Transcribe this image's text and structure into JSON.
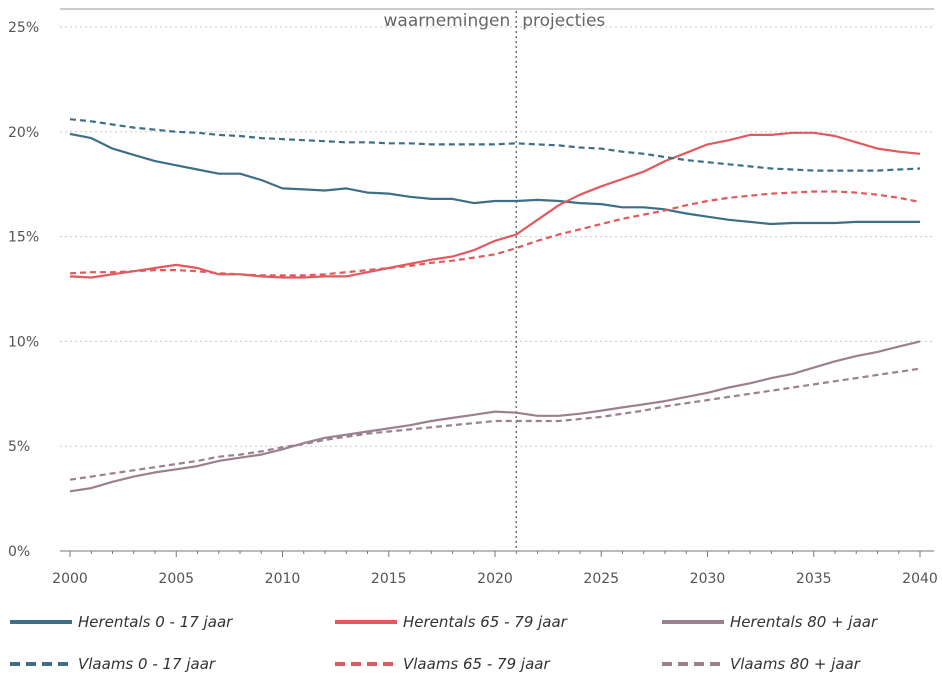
{
  "chart_data": {
    "type": "line",
    "title": "",
    "xlabel": "",
    "ylabel": "",
    "xlim": [
      2000,
      2040
    ],
    "ylim": [
      0,
      25
    ],
    "x_ticks": [
      "2000",
      "2005",
      "2010",
      "2015",
      "2020",
      "2025",
      "2030",
      "2035",
      "2040"
    ],
    "y_ticks": [
      "0%",
      "5%",
      "10%",
      "15%",
      "20%",
      "25%"
    ],
    "grid": "horizontal dotted",
    "divider_year": 2021,
    "annotation_left": "waarnemingen",
    "annotation_right": "projecties",
    "legend_position": "bottom",
    "x": [
      2000,
      2001,
      2002,
      2003,
      2004,
      2005,
      2006,
      2007,
      2008,
      2009,
      2010,
      2011,
      2012,
      2013,
      2014,
      2015,
      2016,
      2017,
      2018,
      2019,
      2020,
      2021,
      2022,
      2023,
      2024,
      2025,
      2026,
      2027,
      2028,
      2029,
      2030,
      2031,
      2032,
      2033,
      2034,
      2035,
      2036,
      2037,
      2038,
      2039,
      2040
    ],
    "series": [
      {
        "name": "Herentals 0 - 17 jaar",
        "color": "#3e6f87",
        "dash": false,
        "values": [
          19.9,
          19.7,
          19.2,
          18.9,
          18.6,
          18.4,
          18.2,
          18.0,
          18.0,
          17.7,
          17.3,
          17.25,
          17.2,
          17.3,
          17.1,
          17.05,
          16.9,
          16.8,
          16.8,
          16.6,
          16.7,
          16.7,
          16.75,
          16.7,
          16.6,
          16.55,
          16.4,
          16.4,
          16.3,
          16.1,
          15.95,
          15.8,
          15.7,
          15.6,
          15.65,
          15.65,
          15.65,
          15.7,
          15.7,
          15.7,
          15.7
        ]
      },
      {
        "name": "Herentals 65 - 79 jaar",
        "color": "#e05a5e",
        "dash": false,
        "values": [
          13.1,
          13.05,
          13.2,
          13.35,
          13.5,
          13.65,
          13.5,
          13.2,
          13.2,
          13.1,
          13.05,
          13.05,
          13.1,
          13.1,
          13.3,
          13.5,
          13.7,
          13.9,
          14.05,
          14.35,
          14.8,
          15.1,
          15.8,
          16.5,
          17.0,
          17.4,
          17.75,
          18.1,
          18.6,
          19.0,
          19.4,
          19.6,
          19.85,
          19.85,
          19.95,
          19.95,
          19.8,
          19.5,
          19.2,
          19.05,
          18.95
        ]
      },
      {
        "name": "Herentals 80 + jaar",
        "color": "#9c8090",
        "dash": false,
        "values": [
          2.85,
          3.0,
          3.3,
          3.55,
          3.75,
          3.9,
          4.05,
          4.3,
          4.45,
          4.6,
          4.85,
          5.15,
          5.4,
          5.55,
          5.7,
          5.85,
          6.0,
          6.2,
          6.35,
          6.5,
          6.65,
          6.6,
          6.45,
          6.45,
          6.55,
          6.7,
          6.85,
          7.0,
          7.15,
          7.35,
          7.55,
          7.8,
          8.0,
          8.25,
          8.45,
          8.75,
          9.05,
          9.3,
          9.5,
          9.75,
          10.0
        ]
      },
      {
        "name": "Vlaams 0 - 17 jaar",
        "color": "#3e6f87",
        "dash": true,
        "values": [
          20.6,
          20.5,
          20.35,
          20.2,
          20.1,
          20.0,
          19.95,
          19.85,
          19.8,
          19.7,
          19.65,
          19.6,
          19.55,
          19.5,
          19.5,
          19.45,
          19.45,
          19.4,
          19.4,
          19.4,
          19.4,
          19.45,
          19.4,
          19.35,
          19.25,
          19.2,
          19.05,
          18.95,
          18.8,
          18.65,
          18.55,
          18.45,
          18.35,
          18.25,
          18.2,
          18.15,
          18.15,
          18.15,
          18.15,
          18.2,
          18.25
        ]
      },
      {
        "name": "Vlaams 65 - 79 jaar",
        "color": "#e05a5e",
        "dash": true,
        "values": [
          13.25,
          13.3,
          13.3,
          13.35,
          13.4,
          13.4,
          13.35,
          13.25,
          13.2,
          13.15,
          13.15,
          13.15,
          13.2,
          13.3,
          13.4,
          13.5,
          13.6,
          13.75,
          13.85,
          14.0,
          14.15,
          14.45,
          14.8,
          15.1,
          15.35,
          15.6,
          15.85,
          16.05,
          16.25,
          16.5,
          16.7,
          16.85,
          16.95,
          17.05,
          17.1,
          17.15,
          17.15,
          17.1,
          17.0,
          16.85,
          16.65
        ]
      },
      {
        "name": "Vlaams 80 + jaar",
        "color": "#9c8090",
        "dash": true,
        "values": [
          3.4,
          3.55,
          3.7,
          3.85,
          4.0,
          4.15,
          4.3,
          4.5,
          4.6,
          4.75,
          4.95,
          5.1,
          5.3,
          5.45,
          5.6,
          5.7,
          5.8,
          5.9,
          6.0,
          6.1,
          6.2,
          6.2,
          6.2,
          6.2,
          6.3,
          6.4,
          6.55,
          6.7,
          6.9,
          7.05,
          7.2,
          7.35,
          7.5,
          7.65,
          7.8,
          7.95,
          8.1,
          8.25,
          8.4,
          8.55,
          8.7
        ]
      }
    ]
  },
  "legend": {
    "items": [
      {
        "label": "Herentals 0 - 17 jaar",
        "color": "#3e6f87",
        "dash": false
      },
      {
        "label": "Herentals 65 - 79 jaar",
        "color": "#e05a5e",
        "dash": false
      },
      {
        "label": "Herentals 80 + jaar",
        "color": "#9c8090",
        "dash": false
      },
      {
        "label": "Vlaams 0 - 17 jaar",
        "color": "#3e6f87",
        "dash": true
      },
      {
        "label": "Vlaams 65 - 79 jaar",
        "color": "#e05a5e",
        "dash": true
      },
      {
        "label": "Vlaams 80 + jaar",
        "color": "#9c8090",
        "dash": true
      }
    ]
  }
}
